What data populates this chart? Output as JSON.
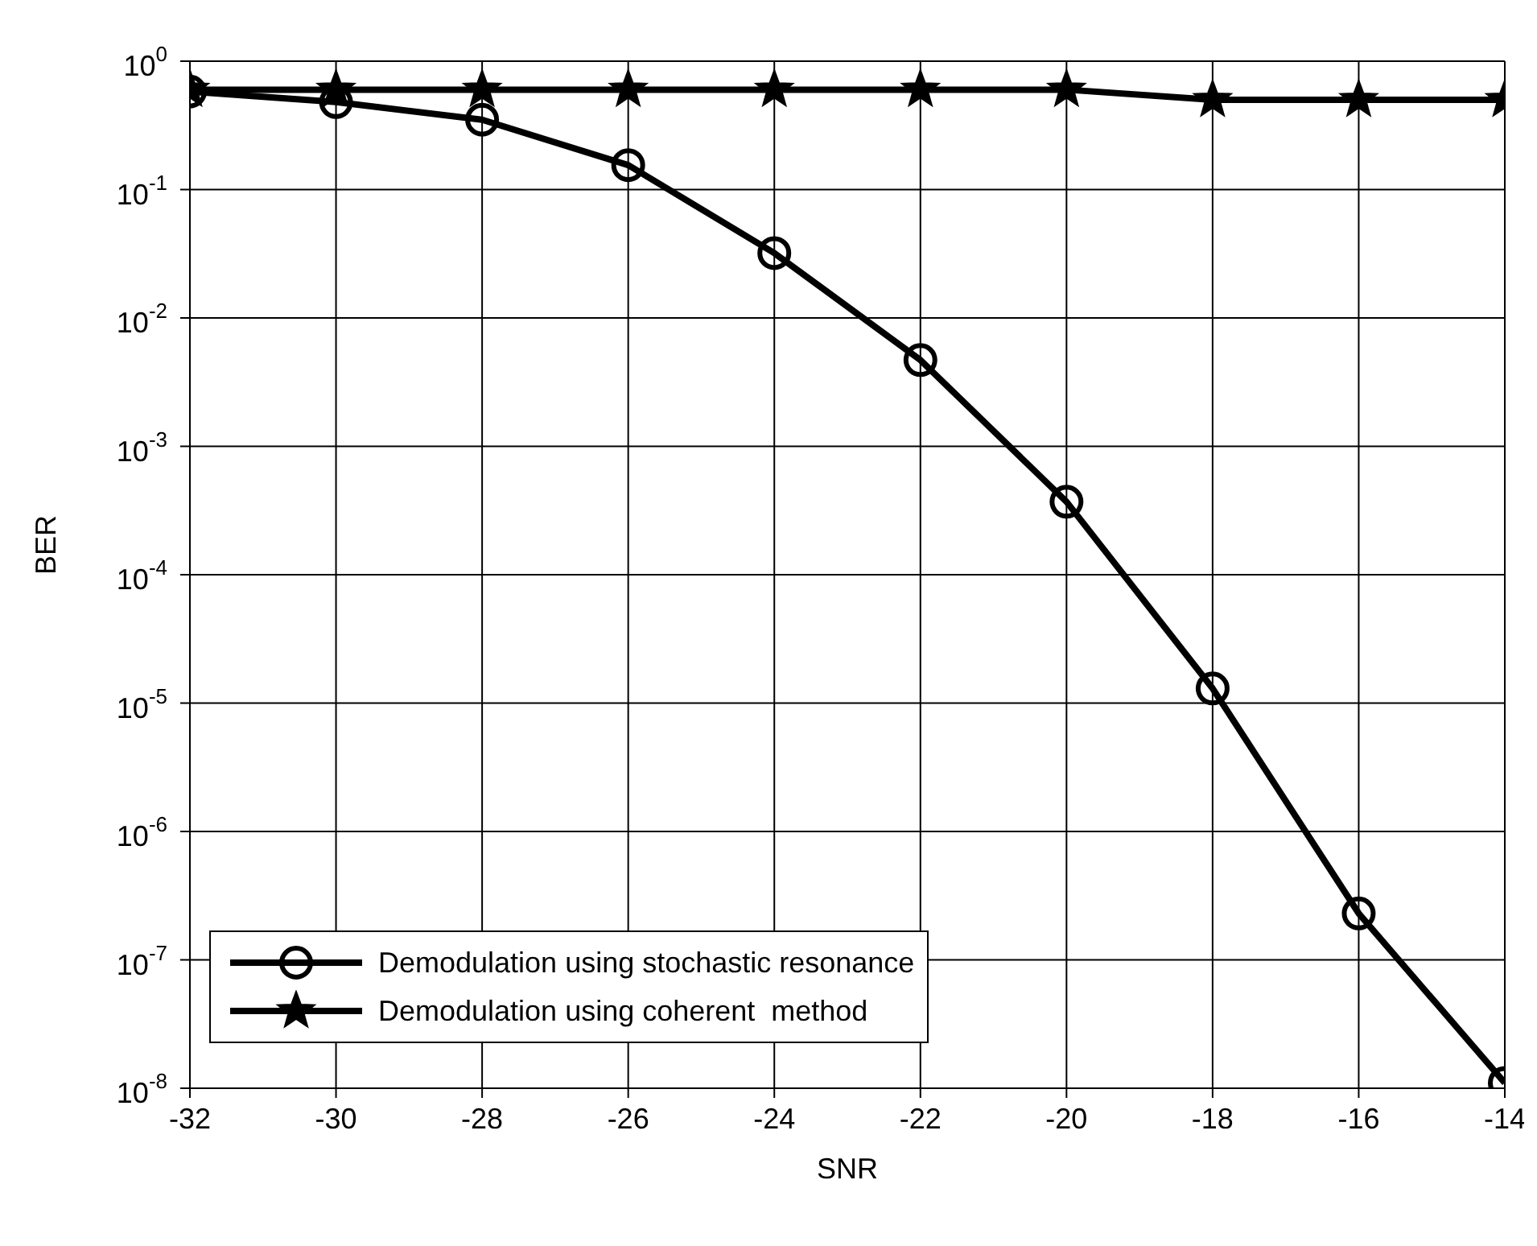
{
  "chart_data": {
    "type": "line",
    "xlabel": "SNR",
    "ylabel": "BER",
    "x": [
      -32,
      -30,
      -28,
      -26,
      -24,
      -22,
      -20,
      -18,
      -16,
      -14
    ],
    "series": [
      {
        "name": "Demodulation using stochastic resonance",
        "color": "#000000",
        "marker": "circle",
        "values": [
          0.58,
          0.48,
          0.35,
          0.155,
          0.032,
          0.0047,
          0.00037,
          1.3e-05,
          2.3e-07,
          1.1e-08
        ]
      },
      {
        "name": "Demodulation using coherent  method",
        "color": "#000000",
        "marker": "star",
        "values": [
          0.6,
          0.6,
          0.6,
          0.6,
          0.6,
          0.6,
          0.6,
          0.5,
          0.5,
          0.5
        ]
      }
    ],
    "log": "y",
    "xlim": [
      -32,
      -14
    ],
    "xticks": [
      -32,
      -30,
      -28,
      -26,
      -24,
      -22,
      -20,
      -18,
      -16,
      -14
    ],
    "ylim": [
      1e-08,
      1
    ],
    "yticks": [
      {
        "value": 1e-08,
        "label": "10$^{-8}$"
      },
      {
        "value": 1e-07,
        "label": "10$^{-7}$"
      },
      {
        "value": 1e-06,
        "label": "10$^{-6}$"
      },
      {
        "value": 1e-05,
        "label": "10$^{-5}$"
      },
      {
        "value": 0.0001,
        "label": "10$^{-4}$"
      },
      {
        "value": 0.001,
        "label": "10$^{-3}$"
      },
      {
        "value": 0.01,
        "label": "10$^{-2}$"
      },
      {
        "value": 0.1,
        "label": "10$^{-1}$"
      },
      {
        "value": 1,
        "label": "10$^{0}$"
      }
    ],
    "grid": true,
    "legend": "bottom left",
    "line_style": "solid"
  }
}
